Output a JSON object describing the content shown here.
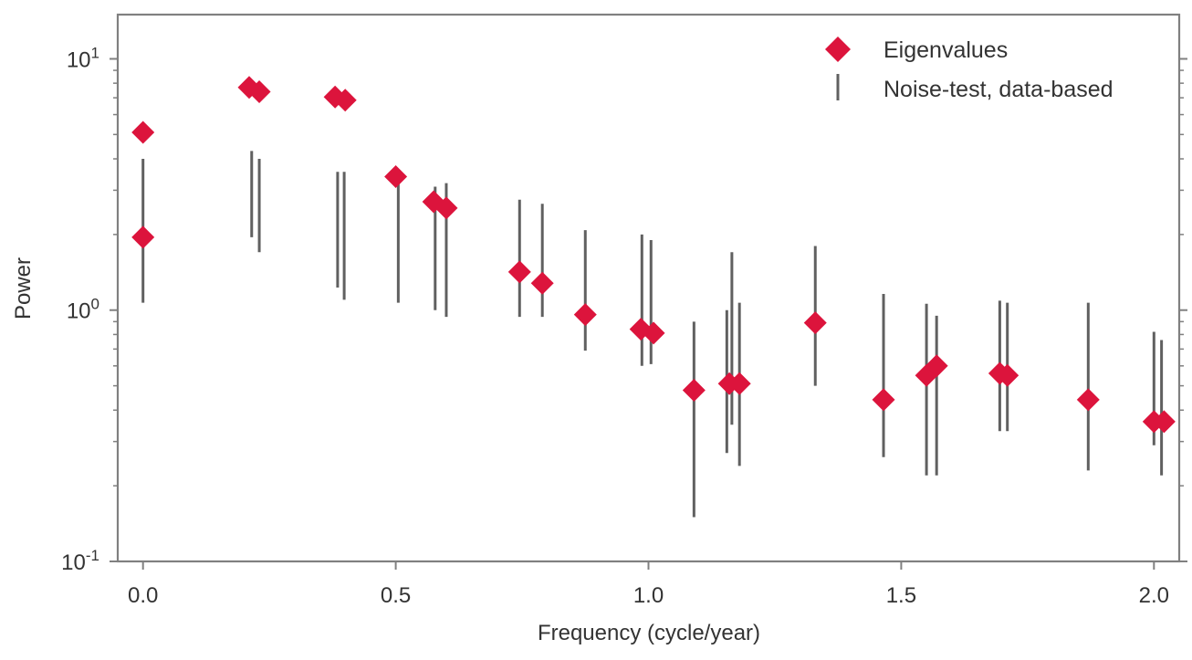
{
  "chart_data": {
    "type": "scatter",
    "title": "",
    "xlabel": "Frequency (cycle/year)",
    "ylabel": "Power",
    "xlim": [
      -0.05,
      2.05
    ],
    "ylim": [
      0.1,
      15
    ],
    "yscale": "log",
    "grid": false,
    "legend_position": "top-right",
    "x_ticks": [
      {
        "value": 0.0,
        "label": "0.0"
      },
      {
        "value": 0.5,
        "label": "0.5"
      },
      {
        "value": 1.0,
        "label": "1.0"
      },
      {
        "value": 1.5,
        "label": "1.5"
      },
      {
        "value": 2.0,
        "label": "2.0"
      }
    ],
    "y_ticks": [
      {
        "value": 0.1,
        "base": "10",
        "exp": "-1"
      },
      {
        "value": 1,
        "base": "10",
        "exp": "0"
      },
      {
        "value": 10,
        "base": "10",
        "exp": "1"
      }
    ],
    "series": [
      {
        "name": "Eigenvalues",
        "marker": "diamond",
        "color": "#dc143c",
        "points": [
          {
            "x": 0.0,
            "y": 5.1
          },
          {
            "x": 0.0,
            "y": 1.95
          },
          {
            "x": 0.21,
            "y": 7.7
          },
          {
            "x": 0.23,
            "y": 7.4
          },
          {
            "x": 0.38,
            "y": 7.05
          },
          {
            "x": 0.4,
            "y": 6.85
          },
          {
            "x": 0.5,
            "y": 3.4
          },
          {
            "x": 0.575,
            "y": 2.7
          },
          {
            "x": 0.6,
            "y": 2.55
          },
          {
            "x": 0.745,
            "y": 1.42
          },
          {
            "x": 0.79,
            "y": 1.28
          },
          {
            "x": 0.875,
            "y": 0.96
          },
          {
            "x": 0.985,
            "y": 0.84
          },
          {
            "x": 1.01,
            "y": 0.81
          },
          {
            "x": 1.09,
            "y": 0.48
          },
          {
            "x": 1.16,
            "y": 0.51
          },
          {
            "x": 1.18,
            "y": 0.51
          },
          {
            "x": 1.33,
            "y": 0.89
          },
          {
            "x": 1.465,
            "y": 0.44
          },
          {
            "x": 1.55,
            "y": 0.55
          },
          {
            "x": 1.57,
            "y": 0.6
          },
          {
            "x": 1.695,
            "y": 0.56
          },
          {
            "x": 1.71,
            "y": 0.55
          },
          {
            "x": 1.87,
            "y": 0.44
          },
          {
            "x": 2.0,
            "y": 0.36
          },
          {
            "x": 2.02,
            "y": 0.36
          }
        ]
      },
      {
        "name": "Noise-test, data-based",
        "marker": "vline",
        "color": "#606060",
        "ranges": [
          {
            "x": 0.0,
            "low": 1.07,
            "high": 4.0
          },
          {
            "x": 0.215,
            "low": 1.95,
            "high": 4.3
          },
          {
            "x": 0.23,
            "low": 1.7,
            "high": 4.0
          },
          {
            "x": 0.385,
            "low": 1.23,
            "high": 3.55
          },
          {
            "x": 0.398,
            "low": 1.1,
            "high": 3.55
          },
          {
            "x": 0.505,
            "low": 1.07,
            "high": 3.5
          },
          {
            "x": 0.578,
            "low": 1.0,
            "high": 3.1
          },
          {
            "x": 0.6,
            "low": 0.94,
            "high": 3.2
          },
          {
            "x": 0.745,
            "low": 0.94,
            "high": 2.75
          },
          {
            "x": 0.79,
            "low": 0.94,
            "high": 2.65
          },
          {
            "x": 0.875,
            "low": 0.69,
            "high": 2.08
          },
          {
            "x": 0.987,
            "low": 0.6,
            "high": 2.0
          },
          {
            "x": 1.005,
            "low": 0.61,
            "high": 1.9
          },
          {
            "x": 1.09,
            "low": 0.15,
            "high": 0.9
          },
          {
            "x": 1.155,
            "low": 0.27,
            "high": 1.0
          },
          {
            "x": 1.165,
            "low": 0.35,
            "high": 1.7
          },
          {
            "x": 1.18,
            "low": 0.24,
            "high": 1.07
          },
          {
            "x": 1.33,
            "low": 0.5,
            "high": 1.8
          },
          {
            "x": 1.465,
            "low": 0.26,
            "high": 1.16
          },
          {
            "x": 1.55,
            "low": 0.22,
            "high": 1.06
          },
          {
            "x": 1.57,
            "low": 0.22,
            "high": 0.95
          },
          {
            "x": 1.695,
            "low": 0.33,
            "high": 1.09
          },
          {
            "x": 1.71,
            "low": 0.33,
            "high": 1.07
          },
          {
            "x": 1.87,
            "low": 0.23,
            "high": 1.07
          },
          {
            "x": 2.0,
            "low": 0.29,
            "high": 0.82
          },
          {
            "x": 2.015,
            "low": 0.22,
            "high": 0.76
          }
        ]
      }
    ]
  }
}
